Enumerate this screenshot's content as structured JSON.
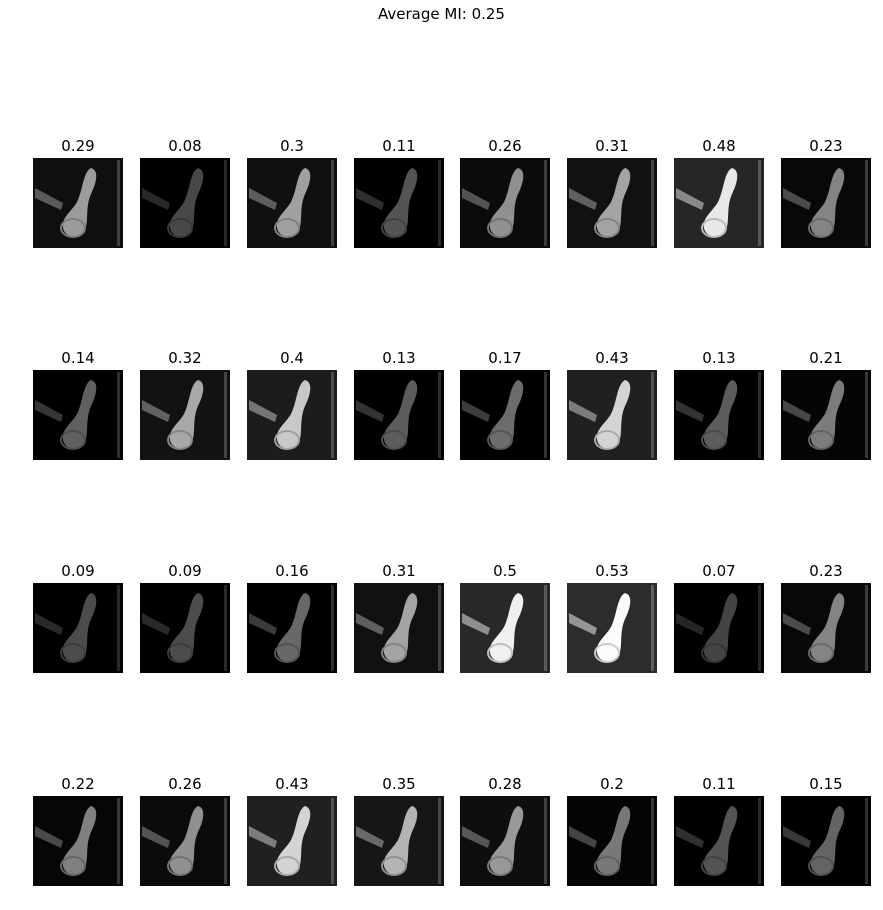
{
  "title": "Average MI: 0.25",
  "chart_data": {
    "type": "image-grid",
    "title": "Average MI: 0.25",
    "rows": 4,
    "cols": 8,
    "values": [
      [
        0.29,
        0.08,
        0.3,
        0.11,
        0.26,
        0.31,
        0.48,
        0.23
      ],
      [
        0.14,
        0.32,
        0.4,
        0.13,
        0.17,
        0.43,
        0.13,
        0.21
      ],
      [
        0.09,
        0.09,
        0.16,
        0.31,
        0.5,
        0.53,
        0.07,
        0.23
      ],
      [
        0.22,
        0.26,
        0.43,
        0.35,
        0.28,
        0.2,
        0.11,
        0.15
      ]
    ],
    "labels": [
      [
        "0.29",
        "0.08",
        "0.3",
        "0.11",
        "0.26",
        "0.31",
        "0.48",
        "0.23"
      ],
      [
        "0.14",
        "0.32",
        "0.4",
        "0.13",
        "0.17",
        "0.43",
        "0.13",
        "0.21"
      ],
      [
        "0.09",
        "0.09",
        "0.16",
        "0.31",
        "0.5",
        "0.53",
        "0.07",
        "0.23"
      ],
      [
        "0.22",
        "0.26",
        "0.43",
        "0.35",
        "0.28",
        "0.2",
        "0.11",
        "0.15"
      ]
    ]
  }
}
